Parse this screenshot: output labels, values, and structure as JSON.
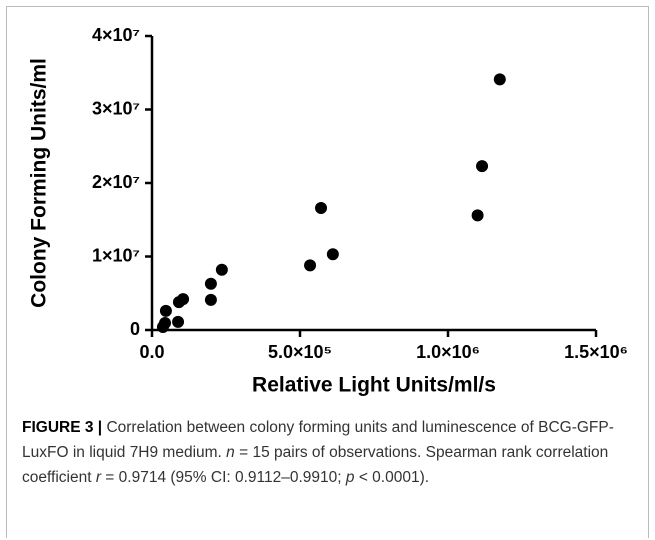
{
  "chart_data": {
    "type": "scatter",
    "x_label": "Relative Light Units/ml/s",
    "y_label": "Colony Forming Units/ml",
    "series": [
      {
        "color": "#000000",
        "x": [
          37000,
          44000,
          47000,
          88000,
          91000,
          105000,
          199000,
          199000,
          236000,
          534000,
          611000,
          571000,
          1100000,
          1115000,
          1175000
        ],
        "values": [
          410000,
          950000,
          2600000,
          1100000,
          3800000,
          4200000,
          4100000,
          6300000,
          8200000,
          8800000,
          10300000,
          16600000,
          15600000,
          22300000,
          34100000
        ]
      }
    ],
    "xlim": [
      0,
      1500000
    ],
    "xticks": [
      {
        "value": 0,
        "label": "0.0"
      },
      {
        "value": 500000,
        "label": "5.0×10⁵"
      },
      {
        "value": 1000000,
        "label": "1.0×10⁶"
      },
      {
        "value": 1500000,
        "label": "1.5×10⁶"
      }
    ],
    "ylim": [
      0,
      40000000
    ],
    "yticks": [
      0,
      {
        "value": 10000000,
        "label": "1×10⁷"
      },
      {
        "value": 20000000,
        "label": "2×10⁷"
      },
      {
        "value": 30000000,
        "label": "3×10⁷"
      },
      {
        "value": 40000000,
        "label": "4×10⁷"
      }
    ]
  },
  "caption": {
    "label": "FIGURE 3 |",
    "segments": [
      "Correlation between colony forming units and luminescence of BCG-GFP-LuxFO in liquid 7H9 medium. ",
      "n",
      " = 15 pairs of observations. Spearman rank correlation coefficient ",
      "r",
      " = 0.9714 (95% CI: 0.9112–0.9910; ",
      "p",
      " < 0.0001)."
    ]
  }
}
